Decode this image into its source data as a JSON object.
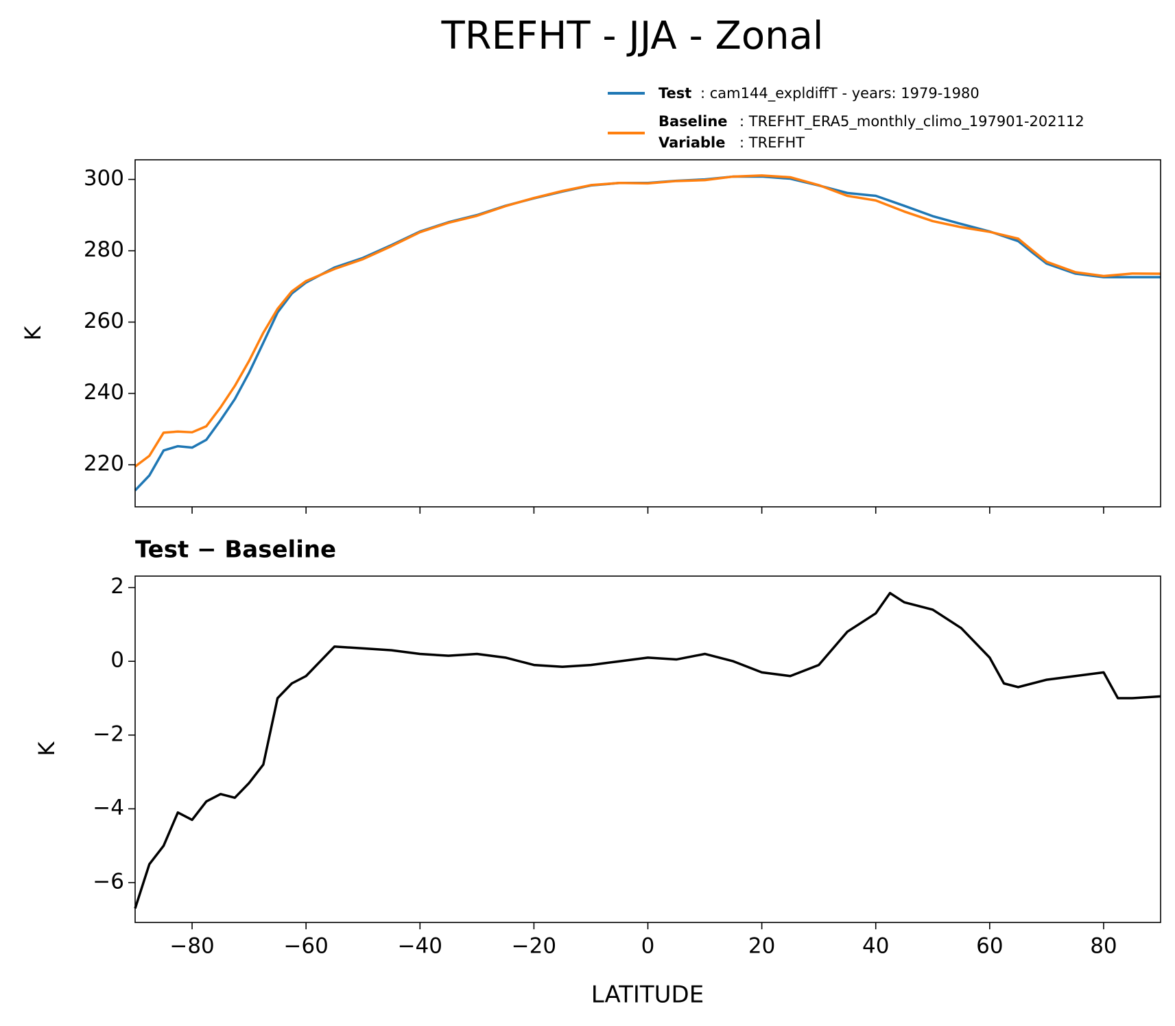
{
  "figure_title": "TREFHT - JJA - Zonal",
  "chart_data": [
    {
      "type": "line",
      "ylabel": "K",
      "xlim": [
        -90,
        90
      ],
      "ylim": [
        208.2,
        305.5
      ],
      "xticks": [
        -80,
        -60,
        -40,
        -20,
        0,
        20,
        40,
        60,
        80
      ],
      "yticks": [
        220,
        240,
        260,
        280,
        300
      ],
      "x": [
        -90,
        -87.5,
        -85,
        -82.5,
        -80,
        -77.5,
        -75,
        -72.5,
        -70,
        -67.5,
        -65,
        -62.5,
        -60,
        -55,
        -50,
        -45,
        -40,
        -35,
        -30,
        -25,
        -20,
        -15,
        -10,
        -5,
        0,
        5,
        10,
        15,
        20,
        25,
        30,
        35,
        40,
        45,
        50,
        55,
        60,
        65,
        67.5,
        70,
        75,
        80,
        85,
        90
      ],
      "series": [
        {
          "name": "Test",
          "description": ": cam144_expldiffT - years: 1979-1980",
          "color": "#1f77b4",
          "values": [
            212.8,
            217,
            224,
            225.2,
            224.8,
            227,
            232.5,
            238.4,
            245.8,
            254.2,
            262.7,
            268,
            271.1,
            275.3,
            278,
            281.6,
            285.4,
            288,
            290,
            292.6,
            294.7,
            296.6,
            298.3,
            299,
            299,
            299.6,
            300,
            300.8,
            300.8,
            300.2,
            298.3,
            296.2,
            295.4,
            292.6,
            289.7,
            287.5,
            285.4,
            282.7,
            279.5,
            276.4,
            273.6,
            272.6,
            272.6,
            272.6
          ]
        },
        {
          "name": "Baseline",
          "description": ": TREFHT_ERA5_monthly_climo_197901-202112",
          "variable_label": "Variable",
          "variable": ": TREFHT",
          "color": "#ff7f0e",
          "values": [
            219.5,
            222.5,
            229,
            229.3,
            229.1,
            230.8,
            236.1,
            242.1,
            249.1,
            257,
            263.7,
            268.6,
            271.5,
            274.9,
            277.65,
            281.3,
            285.2,
            287.85,
            289.8,
            292.5,
            294.8,
            296.75,
            298.4,
            299,
            298.9,
            299.55,
            299.8,
            300.8,
            301.1,
            300.6,
            298.4,
            295.4,
            294.1,
            291,
            288.3,
            286.6,
            285.3,
            283.4,
            280.1,
            276.9,
            274,
            272.9,
            273.6,
            273.55
          ]
        }
      ]
    },
    {
      "type": "line",
      "title": "Test − Baseline",
      "xlabel": "LATITUDE",
      "ylabel": "K",
      "xlim": [
        -90,
        90
      ],
      "ylim": [
        -7.08,
        2.31
      ],
      "xticks": [
        {
          "value": -80,
          "label": "−80"
        },
        {
          "value": -60,
          "label": "−60"
        },
        {
          "value": -40,
          "label": "−40"
        },
        {
          "value": -20,
          "label": "−20"
        },
        0,
        20,
        40,
        60,
        80
      ],
      "yticks": [
        {
          "value": -6,
          "label": "−6"
        },
        {
          "value": -4,
          "label": "−4"
        },
        {
          "value": -2,
          "label": "−2"
        },
        0,
        2
      ],
      "x": [
        -90,
        -87.5,
        -85,
        -82.5,
        -80,
        -77.5,
        -75,
        -72.5,
        -70,
        -67.5,
        -65,
        -62.5,
        -60,
        -55,
        -50,
        -45,
        -40,
        -35,
        -30,
        -25,
        -20,
        -15,
        -10,
        -5,
        0,
        5,
        10,
        15,
        20,
        25,
        30,
        35,
        40,
        42.5,
        45,
        50,
        55,
        60,
        62.5,
        65,
        70,
        75,
        80,
        82.5,
        85,
        90
      ],
      "series": [
        {
          "color": "#000000",
          "values": [
            -6.7,
            -5.5,
            -5.0,
            -4.1,
            -4.3,
            -3.8,
            -3.6,
            -3.7,
            -3.3,
            -2.8,
            -1.0,
            -0.6,
            -0.4,
            0.4,
            0.35,
            0.3,
            0.2,
            0.15,
            0.2,
            0.1,
            -0.1,
            -0.15,
            -0.1,
            0,
            0.1,
            0.05,
            0.2,
            0.0,
            -0.3,
            -0.4,
            -0.1,
            0.8,
            1.3,
            1.85,
            1.6,
            1.4,
            0.9,
            0.1,
            -0.6,
            -0.7,
            -0.5,
            -0.4,
            -0.3,
            -1.0,
            -1.0,
            -0.95
          ]
        }
      ]
    }
  ]
}
